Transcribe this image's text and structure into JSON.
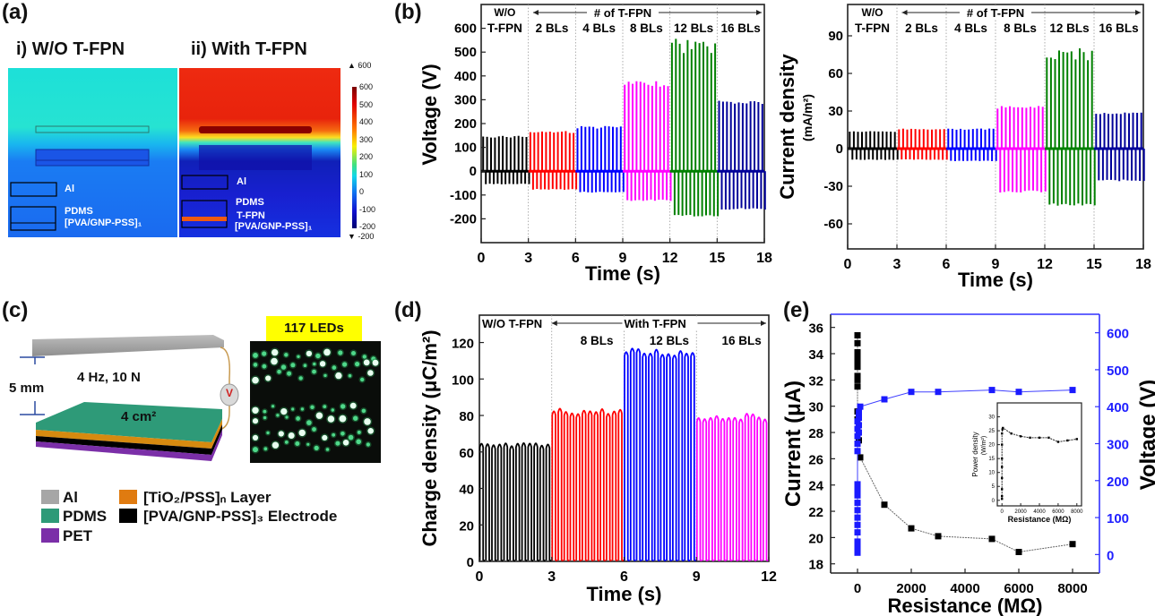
{
  "figure": {
    "panel_labels": [
      "(a)",
      "(b)",
      "(c)",
      "(d)",
      "(e)"
    ]
  },
  "panel_a": {
    "titles": [
      "i) W/O T-FPN",
      "ii) With T-FPN"
    ],
    "labels_left": [
      "Al",
      "PDMS",
      "[PVA/GNP-PSS]₁"
    ],
    "labels_right": [
      "Al",
      "PDMS",
      "T-FPN",
      "[PVA/GNP-PSS]₁"
    ],
    "colorbar": {
      "max_marker": "▲ 600",
      "min_marker": "▼ -200",
      "ticks": [
        "600",
        "500",
        "400",
        "300",
        "200",
        "100",
        "0",
        "-100",
        "-200"
      ]
    }
  },
  "panel_c": {
    "gap_label": "5 mm",
    "condition_label": "4 Hz, 10 N",
    "area_label": "4 cm²",
    "meter_label": "V",
    "led_banner": "117 LEDs",
    "legend": [
      {
        "label": "Al",
        "color": "#a6a6a6"
      },
      {
        "label": "PDMS",
        "color": "#2e9a78"
      },
      {
        "label": "PET",
        "color": "#7b2fa8"
      },
      {
        "label": "[TiO₂/PSS]ₙ Layer",
        "color": "#e07b10"
      },
      {
        "label": "[PVA/GNP-PSS]₃ Electrode",
        "color": "#000000"
      }
    ]
  },
  "chart_data": [
    {
      "id": "b-voltage",
      "type": "bar",
      "title": "",
      "xlabel": "Time (s)",
      "ylabel": "Voltage (V)",
      "xlim": [
        0,
        18
      ],
      "ylim": [
        -300,
        700
      ],
      "xticks": [
        "0",
        "3",
        "6",
        "9",
        "12",
        "15",
        "18"
      ],
      "yticks": [
        "600",
        "500",
        "400",
        "300",
        "200",
        "100",
        "0",
        "-100",
        "-200"
      ],
      "ytick_values": [
        600,
        500,
        400,
        300,
        200,
        100,
        0,
        -100,
        -200
      ],
      "annotations": {
        "top_left": "W/O",
        "arrow": "# of T-FPN"
      },
      "segments": [
        {
          "name": "W/O T-FPN",
          "label": "T-FPN",
          "color": "#000000",
          "t": [
            0,
            3
          ],
          "peak": 150,
          "trough": -55
        },
        {
          "name": "2 BLs",
          "label": "2 BLs",
          "color": "#ff0000",
          "t": [
            3,
            6
          ],
          "peak": 170,
          "trough": -78
        },
        {
          "name": "4 BLs",
          "label": "4 BLs",
          "color": "#0000ff",
          "t": [
            6,
            9
          ],
          "peak": 190,
          "trough": -90
        },
        {
          "name": "8 BLs",
          "label": "8 BLs",
          "color": "#ff00ff",
          "t": [
            9,
            12
          ],
          "peak": 378,
          "trough": -125
        },
        {
          "name": "12 BLs",
          "label": "12 BLs",
          "color": "#008000",
          "t": [
            12,
            15
          ],
          "peak": 560,
          "trough": -190
        },
        {
          "name": "16 BLs",
          "label": "16 BLs",
          "color": "#000099",
          "t": [
            15,
            18
          ],
          "peak": 298,
          "trough": -162
        }
      ]
    },
    {
      "id": "b-current",
      "type": "bar",
      "title": "",
      "xlabel": "Time (s)",
      "ylabel": "Current density",
      "ylabel_unit": "(mA/m²)",
      "xlim": [
        0,
        18
      ],
      "ylim": [
        -80,
        115
      ],
      "xticks": [
        "0",
        "3",
        "6",
        "9",
        "12",
        "15",
        "18"
      ],
      "yticks": [
        "90",
        "60",
        "30",
        "0",
        "-30",
        "-60"
      ],
      "ytick_values": [
        90,
        60,
        30,
        0,
        -30,
        -60
      ],
      "annotations": {
        "top_left": "W/O",
        "arrow": "# of T-FPN"
      },
      "segments": [
        {
          "name": "W/O T-FPN",
          "label": "T-FPN",
          "color": "#000000",
          "t": [
            0,
            3
          ],
          "peak": 14,
          "trough": -9
        },
        {
          "name": "2 BLs",
          "label": "2 BLs",
          "color": "#ff0000",
          "t": [
            3,
            6
          ],
          "peak": 16,
          "trough": -9
        },
        {
          "name": "4 BLs",
          "label": "4 BLs",
          "color": "#0000ff",
          "t": [
            6,
            9
          ],
          "peak": 16,
          "trough": -10
        },
        {
          "name": "8 BLs",
          "label": "8 BLs",
          "color": "#ff00ff",
          "t": [
            9,
            12
          ],
          "peak": 34,
          "trough": -35
        },
        {
          "name": "12 BLs",
          "label": "12 BLs",
          "color": "#008000",
          "t": [
            12,
            15
          ],
          "peak": 80,
          "trough": -46
        },
        {
          "name": "16 BLs",
          "label": "16 BLs",
          "color": "#000099",
          "t": [
            15,
            18
          ],
          "peak": 29,
          "trough": -26
        }
      ]
    },
    {
      "id": "d-charge",
      "type": "line",
      "title": "",
      "xlabel": "Time (s)",
      "ylabel": "Charge density (μC/m²)",
      "xlim": [
        0,
        12
      ],
      "ylim": [
        0,
        135
      ],
      "xticks": [
        "0",
        "3",
        "6",
        "9",
        "12"
      ],
      "yticks": [
        "120",
        "100",
        "80",
        "60",
        "40",
        "20",
        "0"
      ],
      "ytick_values": [
        120,
        100,
        80,
        60,
        40,
        20,
        0
      ],
      "annotations": {
        "left": "W/O T-FPN",
        "arrow": "With T-FPN"
      },
      "segments": [
        {
          "name": "W/O T-FPN",
          "label": "",
          "color": "#000000",
          "t": [
            0,
            3
          ],
          "peak": 65
        },
        {
          "name": "8 BLs",
          "label": "8 BLs",
          "color": "#ff0000",
          "t": [
            3,
            6
          ],
          "peak": 84
        },
        {
          "name": "12 BLs",
          "label": "12 BLs",
          "color": "#0000ff",
          "t": [
            6,
            9
          ],
          "peak": 117
        },
        {
          "name": "16 BLs",
          "label": "16 BLs",
          "color": "#ff00ff",
          "t": [
            9,
            12
          ],
          "peak": 81
        }
      ]
    },
    {
      "id": "e-resistance",
      "type": "scatter",
      "title": "",
      "xlabel": "Resistance (MΩ)",
      "ylabel": "Current (μA)",
      "y2label": "Voltage (V)",
      "xlim": [
        -1000,
        9000
      ],
      "ylim": [
        17.3,
        37
      ],
      "y2lim": [
        -50,
        650
      ],
      "xticks": [
        "0",
        "2000",
        "4000",
        "6000",
        "8000"
      ],
      "xtick_values": [
        0,
        2000,
        4000,
        6000,
        8000
      ],
      "yticks": [
        "36",
        "34",
        "32",
        "30",
        "28",
        "26",
        "24",
        "22",
        "20",
        "18"
      ],
      "ytick_values": [
        36,
        34,
        32,
        30,
        28,
        26,
        24,
        22,
        20,
        18
      ],
      "y2ticks": [
        "600",
        "500",
        "400",
        "300",
        "200",
        "100",
        "0"
      ],
      "y2tick_values": [
        600,
        500,
        400,
        300,
        200,
        100,
        0
      ],
      "series": [
        {
          "name": "Current",
          "axis": "left",
          "color": "#000000",
          "x": [
            0,
            0,
            0,
            0,
            0,
            0,
            0,
            0,
            0,
            0,
            0,
            50,
            100,
            1000,
            2000,
            3000,
            5000,
            6000,
            8000
          ],
          "y": [
            35.4,
            34.8,
            34.1,
            33.8,
            33.4,
            33.0,
            32.3,
            32.0,
            31.5,
            29.6,
            29.0,
            27.4,
            26.1,
            22.5,
            20.7,
            20.1,
            19.9,
            18.9,
            19.5
          ]
        },
        {
          "name": "Voltage",
          "axis": "right",
          "color": "#0000ff",
          "x": [
            0,
            0,
            0,
            0,
            0,
            0,
            0,
            0,
            0,
            0,
            0,
            0,
            0,
            0,
            0,
            0,
            0,
            50,
            50,
            50,
            50,
            100,
            1000,
            2000,
            3000,
            5000,
            6000,
            8000
          ],
          "y": [
            5,
            15,
            25,
            35,
            60,
            80,
            100,
            120,
            140,
            160,
            175,
            190,
            280,
            300,
            320,
            340,
            360,
            330,
            350,
            370,
            385,
            400,
            420,
            440,
            440,
            445,
            440,
            445
          ]
        }
      ],
      "inset": {
        "type": "line",
        "xlabel": "Resistance (MΩ)",
        "ylabel": "Power density",
        "ylabel_unit": "(W/m²)",
        "xlim": [
          -500,
          8500
        ],
        "ylim": [
          -2,
          35
        ],
        "xticks": [
          "0",
          "2000",
          "4000",
          "6000",
          "8000"
        ],
        "xtick_values": [
          0,
          2000,
          4000,
          6000,
          8000
        ],
        "yticks": [
          "30",
          "25",
          "20",
          "15",
          "10",
          "5",
          "0"
        ],
        "ytick_values": [
          30,
          25,
          20,
          15,
          10,
          5,
          0
        ],
        "x": [
          0,
          0,
          0,
          0,
          0,
          0,
          0,
          0,
          50,
          100,
          1000,
          2000,
          3000,
          4000,
          5000,
          6000,
          7000,
          8000
        ],
        "y": [
          0.5,
          1.5,
          4,
          8,
          12,
          15,
          20,
          24,
          25.5,
          26,
          24,
          23,
          22.5,
          22.5,
          22.5,
          21,
          21.5,
          22
        ]
      }
    }
  ]
}
